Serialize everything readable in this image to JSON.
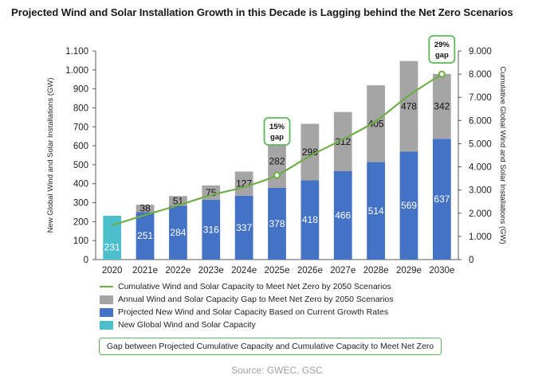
{
  "chart_data": {
    "type": "bar",
    "title": "Projected Wind and Solar Installation Growth in this Decade is Lagging behind the Net Zero Scenarios",
    "categories": [
      "2020",
      "2021e",
      "2022e",
      "2023e",
      "2024e",
      "2025e",
      "2026e",
      "2027e",
      "2028e",
      "2029e",
      "2030e"
    ],
    "series": [
      {
        "name": "New Global Wind and Solar Capacity",
        "kind": "bar",
        "axis": "left",
        "color": "#4bbfcb",
        "values": [
          231,
          null,
          null,
          null,
          null,
          null,
          null,
          null,
          null,
          null,
          null
        ]
      },
      {
        "name": "Projected New Wind and Solar Capacity Based on Current Growth Rates",
        "kind": "stacked-bar",
        "axis": "left",
        "color": "#4472c4",
        "values": [
          null,
          251,
          284,
          316,
          337,
          378,
          418,
          466,
          514,
          569,
          637
        ]
      },
      {
        "name": "Annual Wind and Solar Capacity Gap to Meet Net Zero by 2050 Scenarios",
        "kind": "stacked-bar",
        "axis": "left",
        "color": "#a5a5a5",
        "values": [
          null,
          38,
          51,
          75,
          127,
          282,
          298,
          312,
          405,
          478,
          342
        ]
      },
      {
        "name": "Cumulative Wind and Solar Capacity to Meet Net Zero by 2050 Scenarios",
        "kind": "line",
        "axis": "right",
        "color": "#70ad47",
        "values": [
          1480,
          1920,
          2340,
          2780,
          3130,
          3640,
          4470,
          5190,
          5980,
          7080,
          8000
        ]
      }
    ],
    "ylabel": "New Global Wind and Solar Installations (GW)",
    "ylim": [
      0,
      1100
    ],
    "yticks": [
      "0",
      "100",
      "200",
      "300",
      "400",
      "500",
      "600",
      "700",
      "800",
      "900",
      "1.000",
      "1.100"
    ],
    "y2label": "Cumulative  Global Wind and Solar Installations (GW)",
    "y2lim": [
      0,
      9000
    ],
    "y2ticks": [
      "0",
      "1.000",
      "2.000",
      "3.000",
      "4.000",
      "5.000",
      "6.000",
      "7.000",
      "8.000",
      "9.000"
    ],
    "xlabel": "",
    "grid": false,
    "legend_position": "bottom",
    "annotations": [
      {
        "category": "2025e",
        "text_line1": "15%",
        "text_line2": "gap",
        "marker": true
      },
      {
        "category": "2030e",
        "text_line1": "29%",
        "text_line2": "gap",
        "marker": true
      }
    ]
  },
  "legend": {
    "items": [
      {
        "label": "Cumulative Wind and Solar Capacity to Meet Net Zero by 2050 Scenarios",
        "type": "line",
        "color": "#70ad47"
      },
      {
        "label": "Annual Wind and Solar Capacity Gap to Meet Net Zero by 2050 Scenarios",
        "type": "box",
        "color": "#a5a5a5"
      },
      {
        "label": "Projected New Wind and Solar Capacity Based on Current Growth Rates",
        "type": "box",
        "color": "#4472c4"
      },
      {
        "label": "New Global Wind and Solar Capacity",
        "type": "box",
        "color": "#4bbfcb"
      }
    ],
    "gap_box_label": "Gap between Projected Cumulative Capacity and Cumulative Capacity to Meet Net Zero",
    "gap_box_color": "#5cb85c"
  },
  "source": "Source: GWEC, GSC"
}
